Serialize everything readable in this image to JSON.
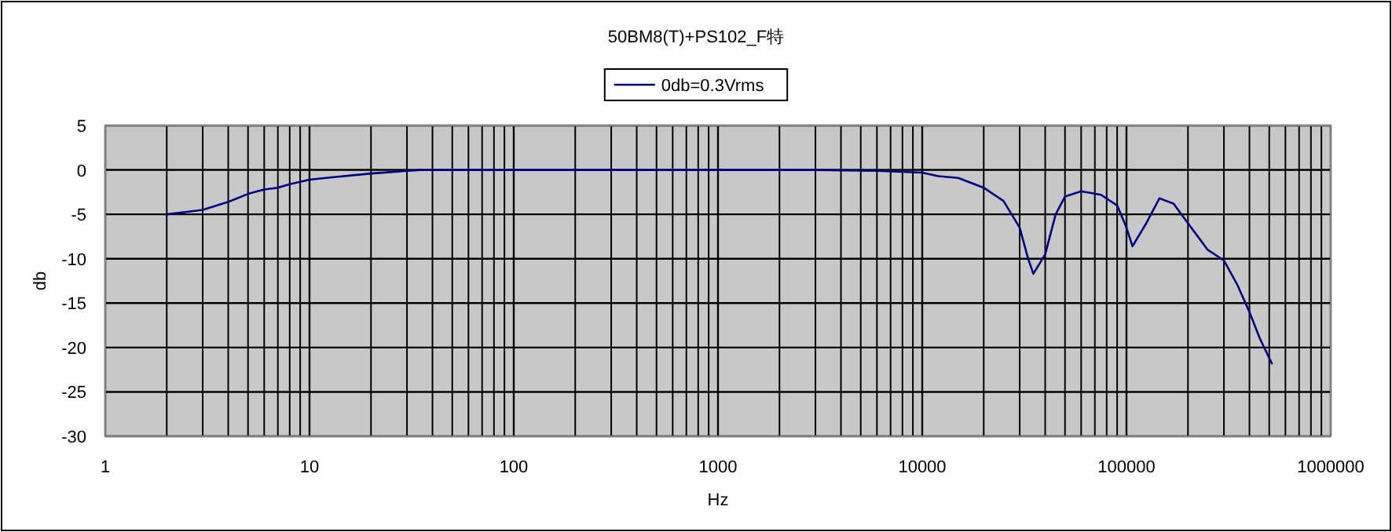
{
  "chart_data": {
    "type": "line",
    "title": "50BM8(T)+PS102_F特",
    "xlabel": "Hz",
    "ylabel": "db",
    "x": [
      2,
      3,
      4,
      5,
      6,
      7,
      8,
      10,
      12,
      20,
      35,
      100,
      1000,
      3000,
      6000,
      10000,
      12000,
      15000,
      20000,
      25000,
      30000,
      33000,
      35000,
      40000,
      45000,
      50000,
      60000,
      75000,
      90000,
      100000,
      107000,
      125000,
      145000,
      170000,
      200000,
      250000,
      300000,
      350000,
      400000,
      450000,
      515000
    ],
    "series": [
      {
        "name": "0db=0.3Vrms",
        "color": "#000080",
        "values": [
          -5,
          -4.5,
          -3.6,
          -2.7,
          -2.2,
          -2.0,
          -1.6,
          -1.1,
          -0.9,
          -0.4,
          0,
          0,
          0,
          0,
          -0.1,
          -0.3,
          -0.7,
          -0.9,
          -2.0,
          -3.5,
          -6.5,
          -10,
          -11.7,
          -9.5,
          -5,
          -3,
          -2.4,
          -2.8,
          -4,
          -6.5,
          -8.6,
          -6,
          -3.2,
          -3.8,
          -6,
          -9,
          -10.2,
          -13,
          -16,
          -19,
          -21.8
        ]
      }
    ],
    "xlim": [
      1,
      1000000
    ],
    "xticks": [
      1,
      10,
      100,
      1000,
      10000,
      100000,
      1000000
    ],
    "ylim": [
      -30,
      5
    ],
    "yticks": [
      -30,
      -25,
      -20,
      -15,
      -10,
      -5,
      0,
      5
    ],
    "log": "x",
    "grid": true,
    "legend": "top"
  }
}
